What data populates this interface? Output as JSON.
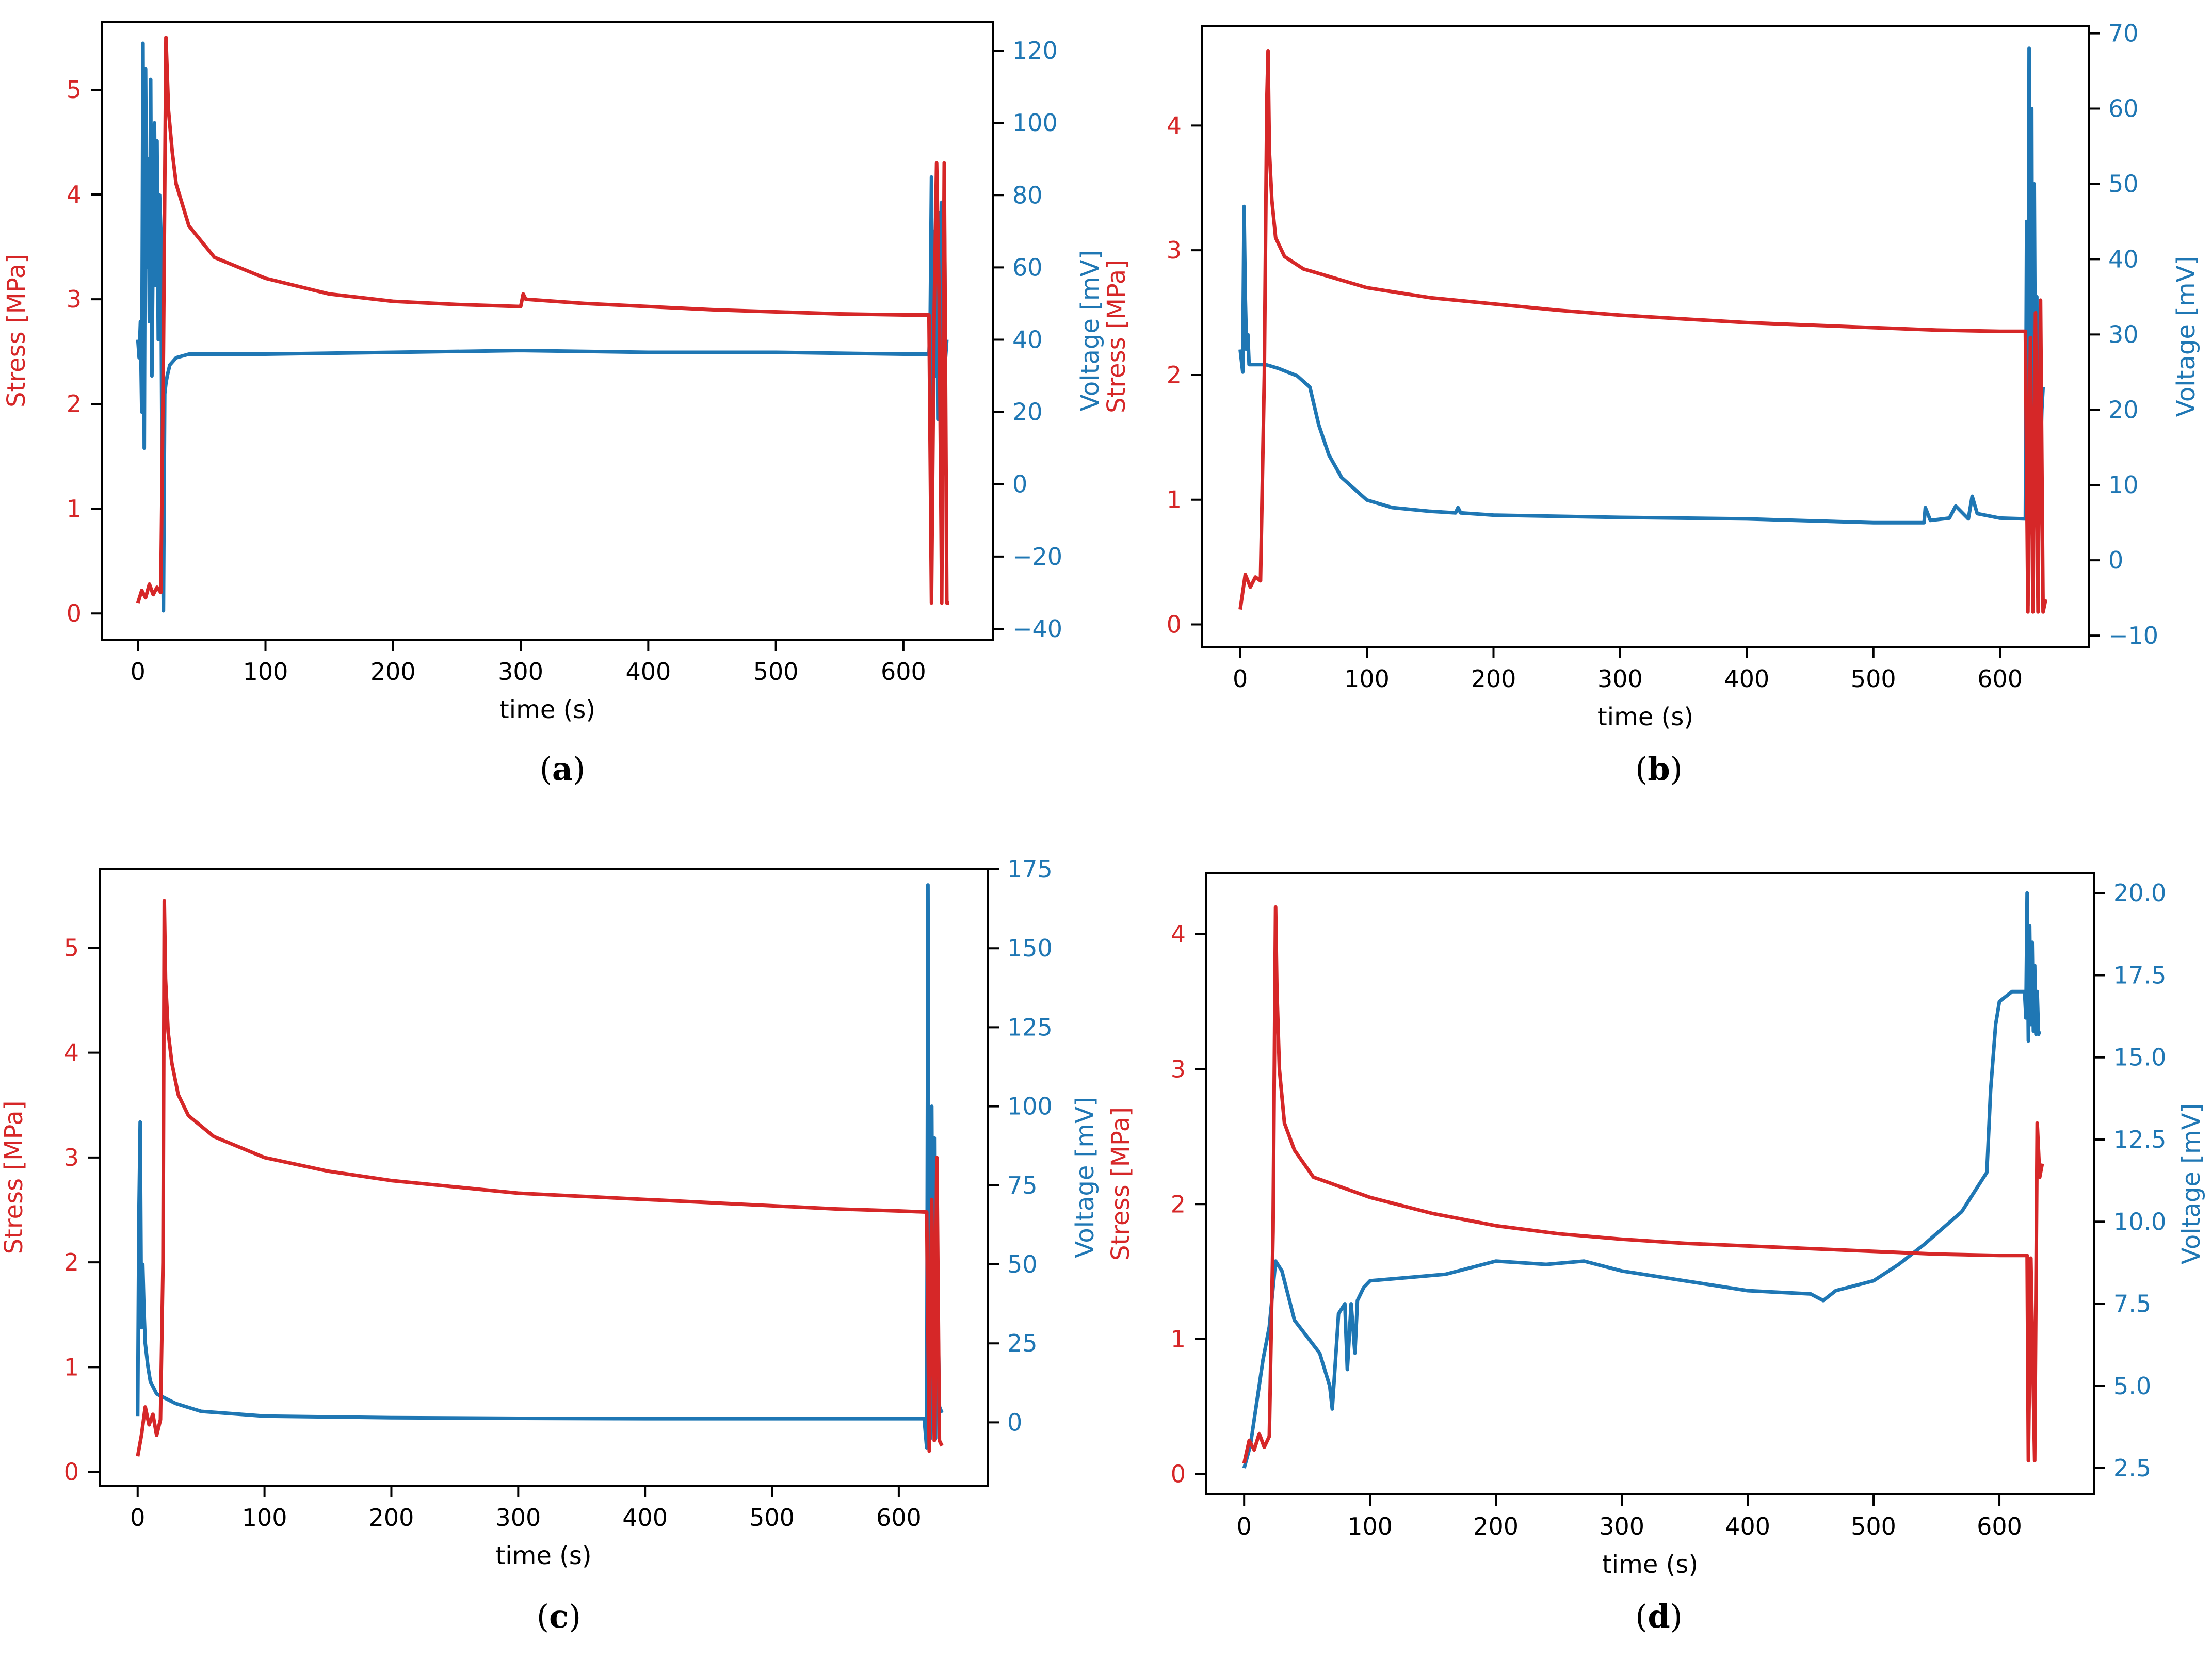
{
  "colors": {
    "stress": "#d62728",
    "voltage": "#1f77b4",
    "axis": "#000000"
  },
  "chart_data": [
    {
      "type": "line",
      "caption": {
        "open": "(",
        "letter": "a",
        "close": ")"
      },
      "xlabel": "time (s)",
      "ylabel_left": "Stress [MPa]",
      "ylabel_right": "Voltage [mV]",
      "xlim": [
        -28,
        670
      ],
      "ylim_left": [
        -0.25,
        5.65
      ],
      "ylim_right": [
        -43,
        128
      ],
      "xticks": [
        0,
        100,
        200,
        300,
        400,
        500,
        600
      ],
      "yticks_left": [
        0,
        1,
        2,
        3,
        4,
        5
      ],
      "yticks_right": [
        -40,
        -20,
        0,
        20,
        40,
        60,
        80,
        100,
        120
      ],
      "yticks_right_labels": [
        "−40",
        "−20",
        "0",
        "20",
        "40",
        "60",
        "80",
        "100",
        "120"
      ],
      "series": [
        {
          "name": "Stress",
          "axis": "left",
          "x": [
            0,
            3,
            6,
            9,
            12,
            15,
            18,
            20,
            22,
            24,
            27,
            30,
            40,
            60,
            100,
            150,
            200,
            250,
            300,
            302,
            304,
            350,
            400,
            450,
            500,
            550,
            600,
            620,
            622,
            624,
            626,
            628,
            630,
            632,
            634,
            636
          ],
          "y": [
            0.1,
            0.22,
            0.15,
            0.28,
            0.18,
            0.25,
            0.2,
            2.5,
            5.5,
            4.8,
            4.4,
            4.1,
            3.7,
            3.4,
            3.2,
            3.05,
            2.98,
            2.95,
            2.93,
            3.05,
            3.0,
            2.96,
            2.93,
            2.9,
            2.88,
            2.86,
            2.85,
            2.85,
            0.1,
            2.8,
            4.3,
            3.0,
            0.1,
            4.3,
            0.1,
            0.1
          ]
        },
        {
          "name": "Voltage",
          "axis": "right",
          "x": [
            0,
            1,
            2,
            3,
            4,
            5,
            6,
            7,
            8,
            9,
            10,
            11,
            12,
            13,
            14,
            15,
            16,
            17,
            18,
            19,
            20,
            21,
            22,
            23,
            25,
            30,
            40,
            60,
            100,
            200,
            300,
            400,
            500,
            600,
            620,
            621,
            622,
            623,
            624,
            625,
            626,
            627,
            628,
            629,
            630,
            631,
            632,
            633,
            634
          ],
          "y": [
            40,
            35,
            45,
            20,
            122,
            10,
            115,
            60,
            90,
            45,
            112,
            30,
            70,
            100,
            55,
            95,
            40,
            80,
            70,
            0,
            -35,
            25,
            28,
            30,
            33,
            35,
            36,
            36,
            36,
            36.5,
            37,
            36.5,
            36.5,
            36,
            36,
            45,
            85,
            22,
            70,
            30,
            80,
            18,
            75,
            40,
            78,
            25,
            80,
            35,
            40
          ]
        }
      ]
    },
    {
      "type": "line",
      "caption": {
        "open": "(",
        "letter": "b",
        "close": ")"
      },
      "xlabel": "time (s)",
      "ylabel_left": "Stress [MPa]",
      "ylabel_right": "Voltage [mV]",
      "xlim": [
        -30,
        670
      ],
      "ylim_left": [
        -0.18,
        4.8
      ],
      "ylim_right": [
        -11.5,
        71
      ],
      "xticks": [
        0,
        100,
        200,
        300,
        400,
        500,
        600
      ],
      "yticks_left": [
        0,
        1,
        2,
        3,
        4
      ],
      "yticks_right": [
        -10,
        0,
        10,
        20,
        30,
        40,
        50,
        60,
        70
      ],
      "yticks_right_labels": [
        "−10",
        "0",
        "10",
        "20",
        "30",
        "40",
        "50",
        "60",
        "70"
      ],
      "series": [
        {
          "name": "Stress",
          "axis": "left",
          "x": [
            0,
            4,
            8,
            12,
            16,
            19,
            21,
            22,
            23,
            25,
            28,
            35,
            50,
            100,
            150,
            200,
            250,
            300,
            350,
            400,
            450,
            500,
            550,
            600,
            620,
            622,
            624,
            626,
            628,
            630,
            632,
            634,
            636
          ],
          "y": [
            0.12,
            0.4,
            0.3,
            0.38,
            0.35,
            2.0,
            4.2,
            4.6,
            3.8,
            3.4,
            3.1,
            2.95,
            2.85,
            2.7,
            2.62,
            2.57,
            2.52,
            2.48,
            2.45,
            2.42,
            2.4,
            2.38,
            2.36,
            2.35,
            2.35,
            0.1,
            2.3,
            0.1,
            2.5,
            0.1,
            2.6,
            0.1,
            0.2
          ]
        },
        {
          "name": "Voltage",
          "axis": "right",
          "x": [
            0,
            2,
            3,
            4,
            5,
            6,
            7,
            10,
            20,
            30,
            45,
            55,
            62,
            70,
            80,
            100,
            120,
            150,
            170,
            172,
            174,
            200,
            300,
            400,
            500,
            540,
            541,
            545,
            560,
            565,
            575,
            578,
            582,
            600,
            620,
            621,
            622,
            623,
            624,
            625,
            626,
            627,
            628,
            629,
            630,
            631,
            632,
            633,
            634
          ],
          "y": [
            28,
            25,
            47,
            35,
            28,
            30,
            26,
            26,
            26,
            25.5,
            24.5,
            23,
            18,
            14,
            11,
            8,
            7,
            6.5,
            6.3,
            7,
            6.3,
            6,
            5.7,
            5.5,
            5,
            5,
            7,
            5.3,
            5.6,
            7.2,
            5.5,
            8.5,
            6.2,
            5.6,
            5.5,
            45,
            -6,
            68,
            15,
            60,
            -4,
            50,
            18,
            35,
            -5,
            25,
            14,
            20,
            23
          ]
        }
      ]
    },
    {
      "type": "line",
      "caption": {
        "open": "(",
        "letter": "c",
        "close": ")"
      },
      "xlabel": "time (s)",
      "ylabel_left": "Stress [MPa]",
      "ylabel_right": "Voltage [mV]",
      "xlim": [
        -30,
        670
      ],
      "ylim_left": [
        -0.13,
        5.75
      ],
      "ylim_right": [
        -20,
        175
      ],
      "xticks": [
        0,
        100,
        200,
        300,
        400,
        500,
        600
      ],
      "yticks_left": [
        0,
        1,
        2,
        3,
        4,
        5
      ],
      "yticks_right": [
        0,
        25,
        50,
        75,
        100,
        125,
        150,
        175
      ],
      "yticks_right_labels": [
        "0",
        "25",
        "50",
        "75",
        "100",
        "125",
        "150",
        "175"
      ],
      "series": [
        {
          "name": "Stress",
          "axis": "left",
          "x": [
            0,
            3,
            6,
            9,
            12,
            15,
            18,
            20,
            21,
            22,
            24,
            27,
            32,
            40,
            60,
            100,
            150,
            200,
            250,
            300,
            350,
            400,
            450,
            500,
            550,
            600,
            622,
            624,
            626,
            628,
            630,
            632,
            634
          ],
          "y": [
            0.15,
            0.35,
            0.62,
            0.45,
            0.55,
            0.35,
            0.5,
            2.0,
            5.45,
            4.7,
            4.2,
            3.9,
            3.6,
            3.4,
            3.2,
            3.0,
            2.87,
            2.78,
            2.72,
            2.66,
            2.63,
            2.6,
            2.57,
            2.54,
            2.51,
            2.49,
            2.48,
            0.2,
            2.6,
            0.3,
            3.0,
            0.3,
            0.25
          ]
        },
        {
          "name": "Voltage",
          "axis": "right",
          "x": [
            0,
            1,
            2,
            3,
            4,
            5,
            6,
            8,
            10,
            15,
            20,
            30,
            50,
            100,
            200,
            300,
            400,
            500,
            600,
            620,
            622,
            623,
            624,
            625,
            626,
            627,
            628,
            629,
            630,
            632,
            634
          ],
          "y": [
            2,
            65,
            95,
            30,
            50,
            35,
            25,
            18,
            13,
            9,
            8,
            6,
            3.5,
            2,
            1.5,
            1.3,
            1.2,
            1.2,
            1.2,
            1.2,
            -8,
            170,
            0,
            -5,
            100,
            20,
            90,
            -5,
            55,
            5,
            3
          ]
        }
      ]
    },
    {
      "type": "line",
      "caption": {
        "open": "(",
        "letter": "d",
        "close": ")"
      },
      "xlabel": "time (s)",
      "ylabel_left": "Stress [MPa]",
      "ylabel_right": "Voltage [mV]",
      "xlim": [
        -30,
        675
      ],
      "ylim_left": [
        -0.15,
        4.45
      ],
      "ylim_right": [
        1.7,
        20.6
      ],
      "xticks": [
        0,
        100,
        200,
        300,
        400,
        500,
        600
      ],
      "yticks_left": [
        0,
        1,
        2,
        3,
        4
      ],
      "yticks_right": [
        2.5,
        5.0,
        7.5,
        10.0,
        12.5,
        15.0,
        17.5,
        20.0
      ],
      "yticks_right_labels": [
        "2.5",
        "5.0",
        "7.5",
        "10.0",
        "12.5",
        "15.0",
        "17.5",
        "20.0"
      ],
      "series": [
        {
          "name": "Stress",
          "axis": "left",
          "x": [
            0,
            4,
            8,
            12,
            16,
            20,
            23,
            25,
            26,
            28,
            32,
            40,
            55,
            100,
            150,
            200,
            250,
            300,
            350,
            400,
            450,
            500,
            550,
            600,
            622,
            623,
            625,
            628,
            630,
            632,
            634
          ],
          "y": [
            0.08,
            0.25,
            0.18,
            0.3,
            0.2,
            0.28,
            1.8,
            4.2,
            3.6,
            3.0,
            2.6,
            2.4,
            2.2,
            2.05,
            1.93,
            1.84,
            1.78,
            1.74,
            1.71,
            1.69,
            1.67,
            1.65,
            1.63,
            1.62,
            1.62,
            0.1,
            1.6,
            0.1,
            2.6,
            2.2,
            2.3
          ]
        },
        {
          "name": "Voltage",
          "axis": "right",
          "x": [
            0,
            5,
            10,
            15,
            20,
            25,
            30,
            40,
            50,
            60,
            68,
            70,
            75,
            80,
            82,
            85,
            88,
            90,
            95,
            100,
            130,
            160,
            200,
            240,
            270,
            300,
            350,
            400,
            450,
            460,
            470,
            500,
            520,
            540,
            570,
            590,
            593,
            597,
            600,
            610,
            618,
            620,
            621,
            622,
            623,
            624,
            625,
            626,
            627,
            628,
            629,
            630,
            631,
            632
          ],
          "y": [
            2.5,
            3.2,
            4.5,
            5.8,
            6.8,
            8.8,
            8.5,
            7.0,
            6.5,
            6.0,
            5.0,
            4.3,
            7.2,
            7.5,
            5.5,
            7.5,
            6.0,
            7.6,
            8.0,
            8.2,
            8.3,
            8.4,
            8.8,
            8.7,
            8.8,
            8.5,
            8.2,
            7.9,
            7.8,
            7.6,
            7.9,
            8.2,
            8.7,
            9.3,
            10.3,
            11.5,
            14.0,
            16.0,
            16.7,
            17.0,
            17.0,
            17.0,
            16.2,
            20.0,
            15.5,
            19.0,
            16.0,
            18.5,
            15.8,
            17.8,
            15.7,
            17.0,
            15.7,
            15.8
          ]
        }
      ]
    }
  ]
}
